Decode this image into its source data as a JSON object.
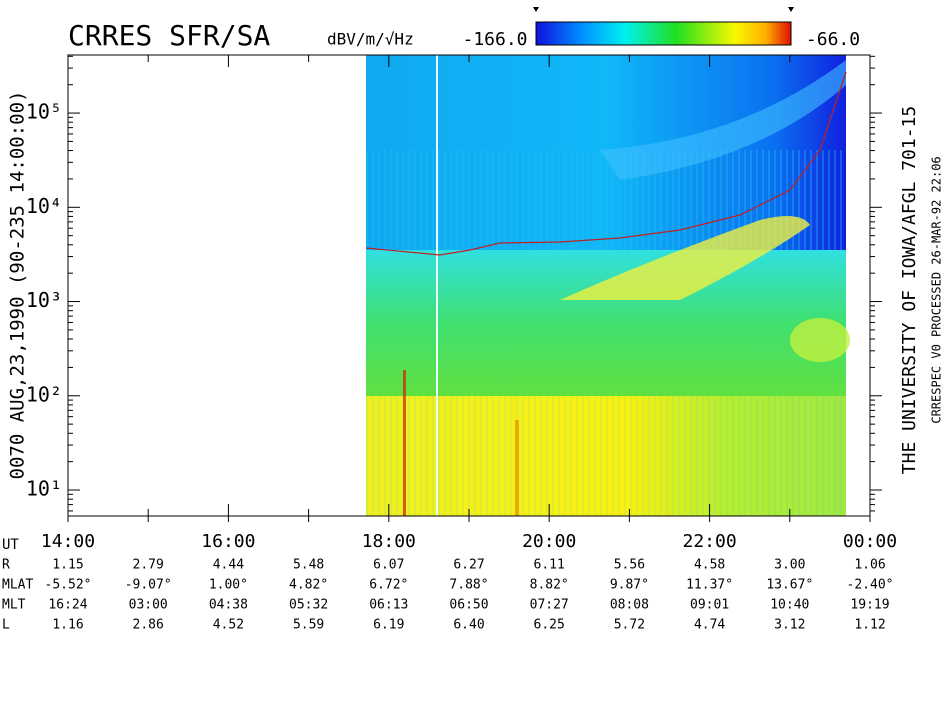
{
  "chart_data": {
    "type": "spectrogram",
    "title": "CRRES SFR/SA",
    "colorbar_label": "dBV/m/√Hz",
    "cticks": [
      {
        "value": -166,
        "label": "-166.0"
      },
      {
        "value": -66,
        "label": "-66.0"
      }
    ],
    "left_label": "0070  AUG,23,1990  (90-235 14:00:00)",
    "right_label": "THE UNIVERSITY OF IOWA/AFGL 701-15",
    "right_sublabel": "CRRESPEC V0   PROCESSED 26-MAR-92  22:06",
    "xlim": [
      14,
      24
    ],
    "xticks": [
      {
        "value": 14,
        "label": "14:00"
      },
      {
        "value": 16,
        "label": "16:00"
      },
      {
        "value": 18,
        "label": "18:00"
      },
      {
        "value": 20,
        "label": "20:00"
      },
      {
        "value": 22,
        "label": "22:00"
      },
      {
        "value": 24,
        "label": "00:00"
      }
    ],
    "ylog": true,
    "ylim": [
      5.3,
      413000
    ],
    "yticks": [
      {
        "value": 10,
        "label": "10¹"
      },
      {
        "value": 100,
        "label": "10²"
      },
      {
        "value": 1000,
        "label": "10³"
      },
      {
        "value": 10000,
        "label": "10⁴"
      },
      {
        "value": 100000,
        "label": "10⁵"
      }
    ],
    "ephemeris": {
      "x_label": "UT",
      "rows": [
        {
          "label": "R",
          "values": [
            "1.15",
            "2.79",
            "4.44",
            "5.48",
            "6.07",
            "6.27",
            "6.11",
            "5.56",
            "4.58",
            "3.00",
            "1.06"
          ]
        },
        {
          "label": "MLAT",
          "values": [
            "-5.52°",
            "-9.07°",
            "1.00°",
            "4.82°",
            "6.72°",
            "7.88°",
            "8.82°",
            "9.87°",
            "11.37°",
            "13.67°",
            "-2.40°"
          ]
        },
        {
          "label": "MLT",
          "values": [
            "16:24",
            "03:00",
            "04:38",
            "05:32",
            "06:13",
            "06:50",
            "07:27",
            "08:08",
            "09:01",
            "10:40",
            "19:19"
          ]
        },
        {
          "label": "L",
          "values": [
            "1.16",
            "2.86",
            "4.52",
            "5.59",
            "6.19",
            "6.40",
            "6.25",
            "5.72",
            "4.74",
            "3.12",
            "1.12"
          ]
        }
      ]
    }
  }
}
